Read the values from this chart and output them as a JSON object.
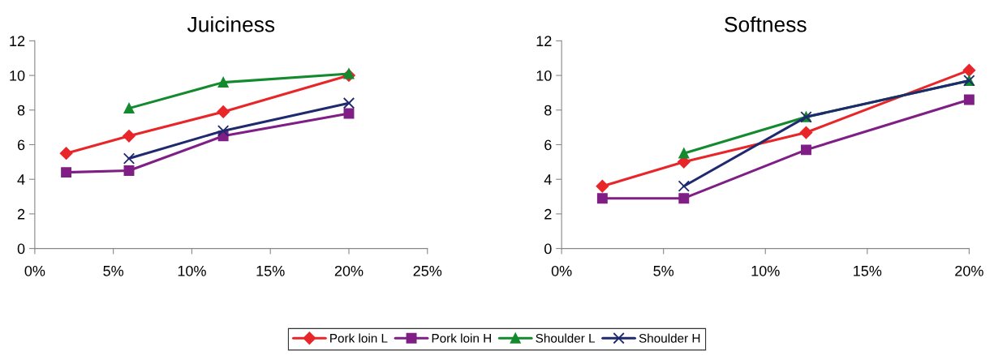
{
  "chart_data": [
    {
      "type": "line",
      "title": "Juiciness",
      "xlim": [
        0,
        25
      ],
      "xticks": [
        {
          "value": 0,
          "label": "0%"
        },
        {
          "value": 5,
          "label": "5%"
        },
        {
          "value": 10,
          "label": "10%"
        },
        {
          "value": 15,
          "label": "15%"
        },
        {
          "value": 20,
          "label": "20%"
        },
        {
          "value": 25,
          "label": "25%"
        }
      ],
      "ylim": [
        0,
        12
      ],
      "yticks": [
        0,
        2,
        4,
        6,
        8,
        10,
        12
      ],
      "grid": false,
      "legend": "bottom",
      "series": [
        {
          "name": "Pork loin L",
          "color": "#e8262a",
          "marker": "diamond",
          "x": [
            2,
            6,
            12,
            20
          ],
          "values": [
            5.5,
            6.5,
            7.9,
            10.0
          ]
        },
        {
          "name": "Pork loin H",
          "color": "#7f1f86",
          "marker": "square",
          "x": [
            2,
            6,
            12,
            20
          ],
          "values": [
            4.4,
            4.5,
            6.5,
            7.8
          ]
        },
        {
          "name": "Shoulder L",
          "color": "#138a2e",
          "marker": "triangle",
          "x": [
            6,
            12,
            20
          ],
          "values": [
            8.1,
            9.6,
            10.1
          ]
        },
        {
          "name": "Shoulder H",
          "color": "#1f2a6e",
          "marker": "cross",
          "x": [
            6,
            12,
            20
          ],
          "values": [
            5.2,
            6.8,
            8.4
          ]
        }
      ]
    },
    {
      "type": "line",
      "title": "Softness",
      "xlim": [
        0,
        20
      ],
      "xticks": [
        {
          "value": 0,
          "label": "0%"
        },
        {
          "value": 5,
          "label": "5%"
        },
        {
          "value": 10,
          "label": "10%"
        },
        {
          "value": 15,
          "label": "15%"
        },
        {
          "value": 20,
          "label": "20%"
        }
      ],
      "ylim": [
        0,
        12
      ],
      "yticks": [
        0,
        2,
        4,
        6,
        8,
        10,
        12
      ],
      "grid": false,
      "series": [
        {
          "color": "#e8262a",
          "marker": "diamond",
          "x": [
            2,
            6,
            12,
            20
          ],
          "values": [
            3.6,
            5.0,
            6.7,
            10.3
          ]
        },
        {
          "color": "#7f1f86",
          "marker": "square",
          "x": [
            2,
            6,
            12,
            20
          ],
          "values": [
            2.9,
            2.9,
            5.7,
            8.6
          ]
        },
        {
          "color": "#138a2e",
          "marker": "triangle",
          "x": [
            6,
            12,
            20
          ],
          "values": [
            5.5,
            7.6,
            9.7
          ]
        },
        {
          "color": "#1f2a6e",
          "marker": "cross",
          "x": [
            6,
            12,
            20
          ],
          "values": [
            3.6,
            7.6,
            9.7
          ]
        }
      ]
    }
  ]
}
